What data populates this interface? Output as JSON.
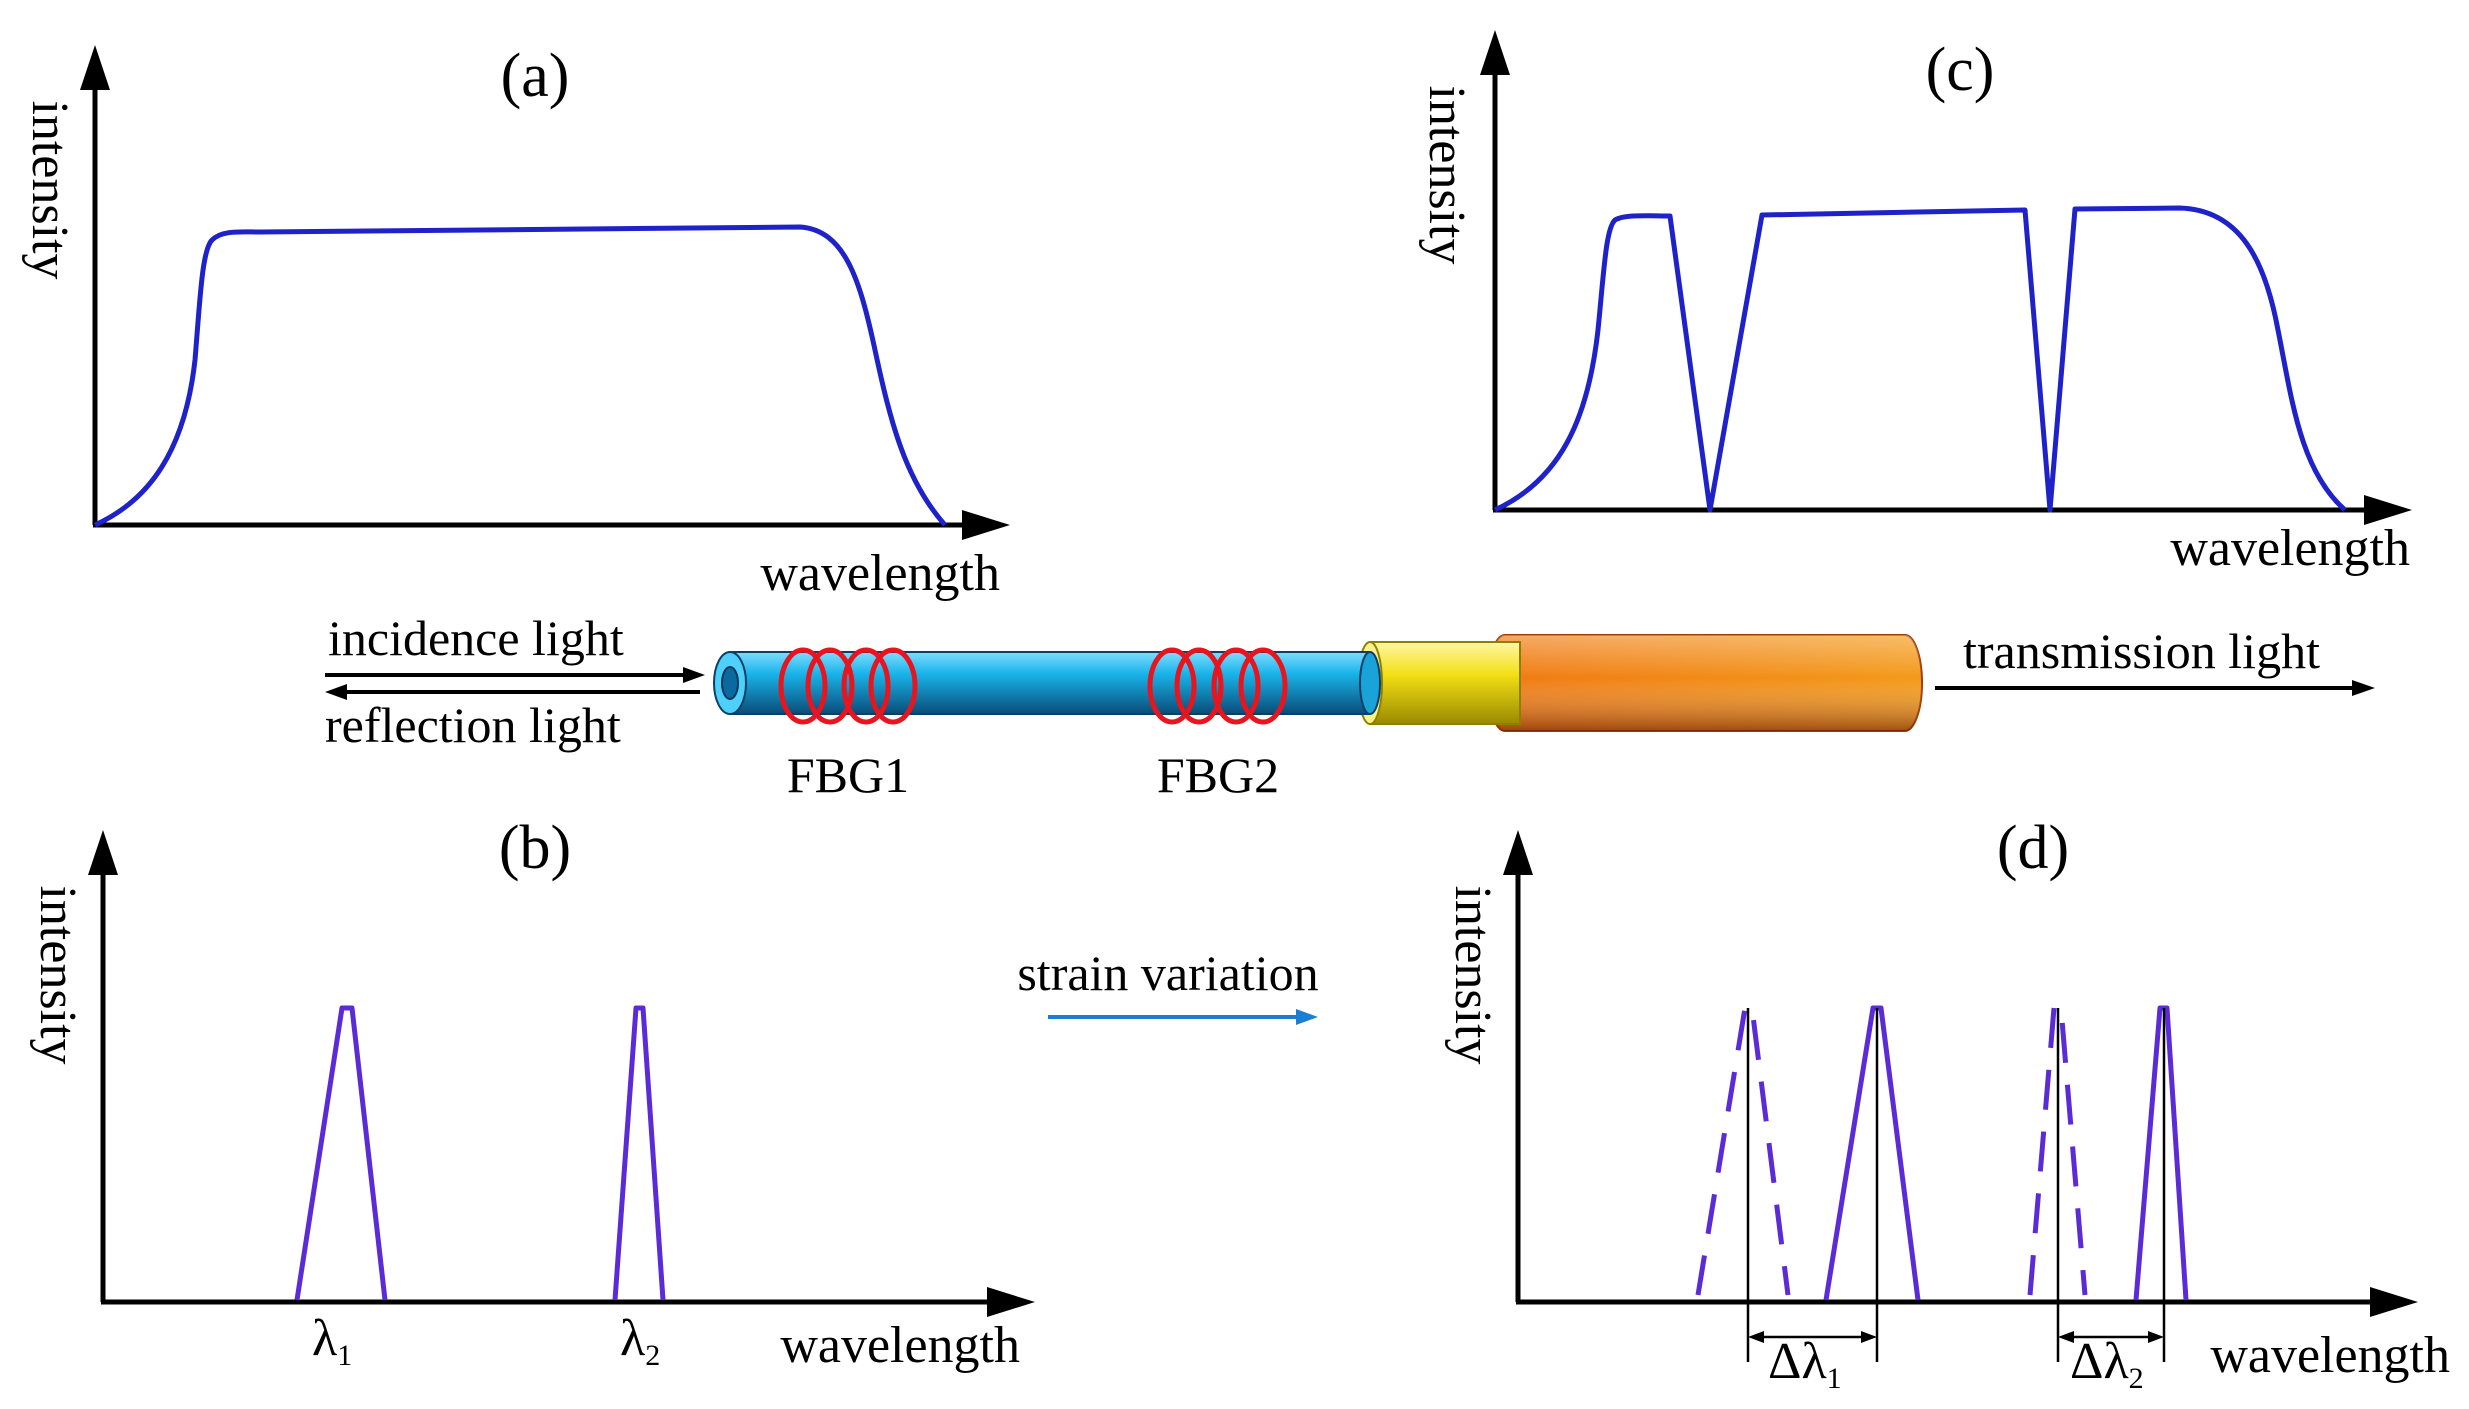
{
  "colors": {
    "spectrum": "#1f22c8",
    "peak": "#5a2bd6",
    "axis": "#000000",
    "grating": "#e8141e",
    "strain_arrow": "#1a7fd4",
    "fiber_core": "#17aee6",
    "fiber_coating": "#f4e21c",
    "fiber_jacket": "#e8620a"
  },
  "panels": {
    "a": {
      "title": "(a)",
      "ylabel": "intensity",
      "xlabel": "wavelength"
    },
    "b": {
      "title": "(b)",
      "ylabel": "intensity",
      "xlabel": "wavelength",
      "peak_labels": [
        {
          "symbol": "λ",
          "sub": "1"
        },
        {
          "symbol": "λ",
          "sub": "2"
        }
      ]
    },
    "c": {
      "title": "(c)",
      "ylabel": "intensity",
      "xlabel": "wavelength"
    },
    "d": {
      "title": "(d)",
      "ylabel": "intensity",
      "xlabel": "wavelength",
      "shift_labels": [
        {
          "symbol": "Δλ",
          "sub": "1"
        },
        {
          "symbol": "Δλ",
          "sub": "2"
        }
      ]
    }
  },
  "fiber": {
    "incidence_label": "incidence light",
    "reflection_label": "reflection light",
    "transmission_label": "transmission light",
    "gratings": [
      "FBG1",
      "FBG2"
    ]
  },
  "strain_label": "strain variation"
}
